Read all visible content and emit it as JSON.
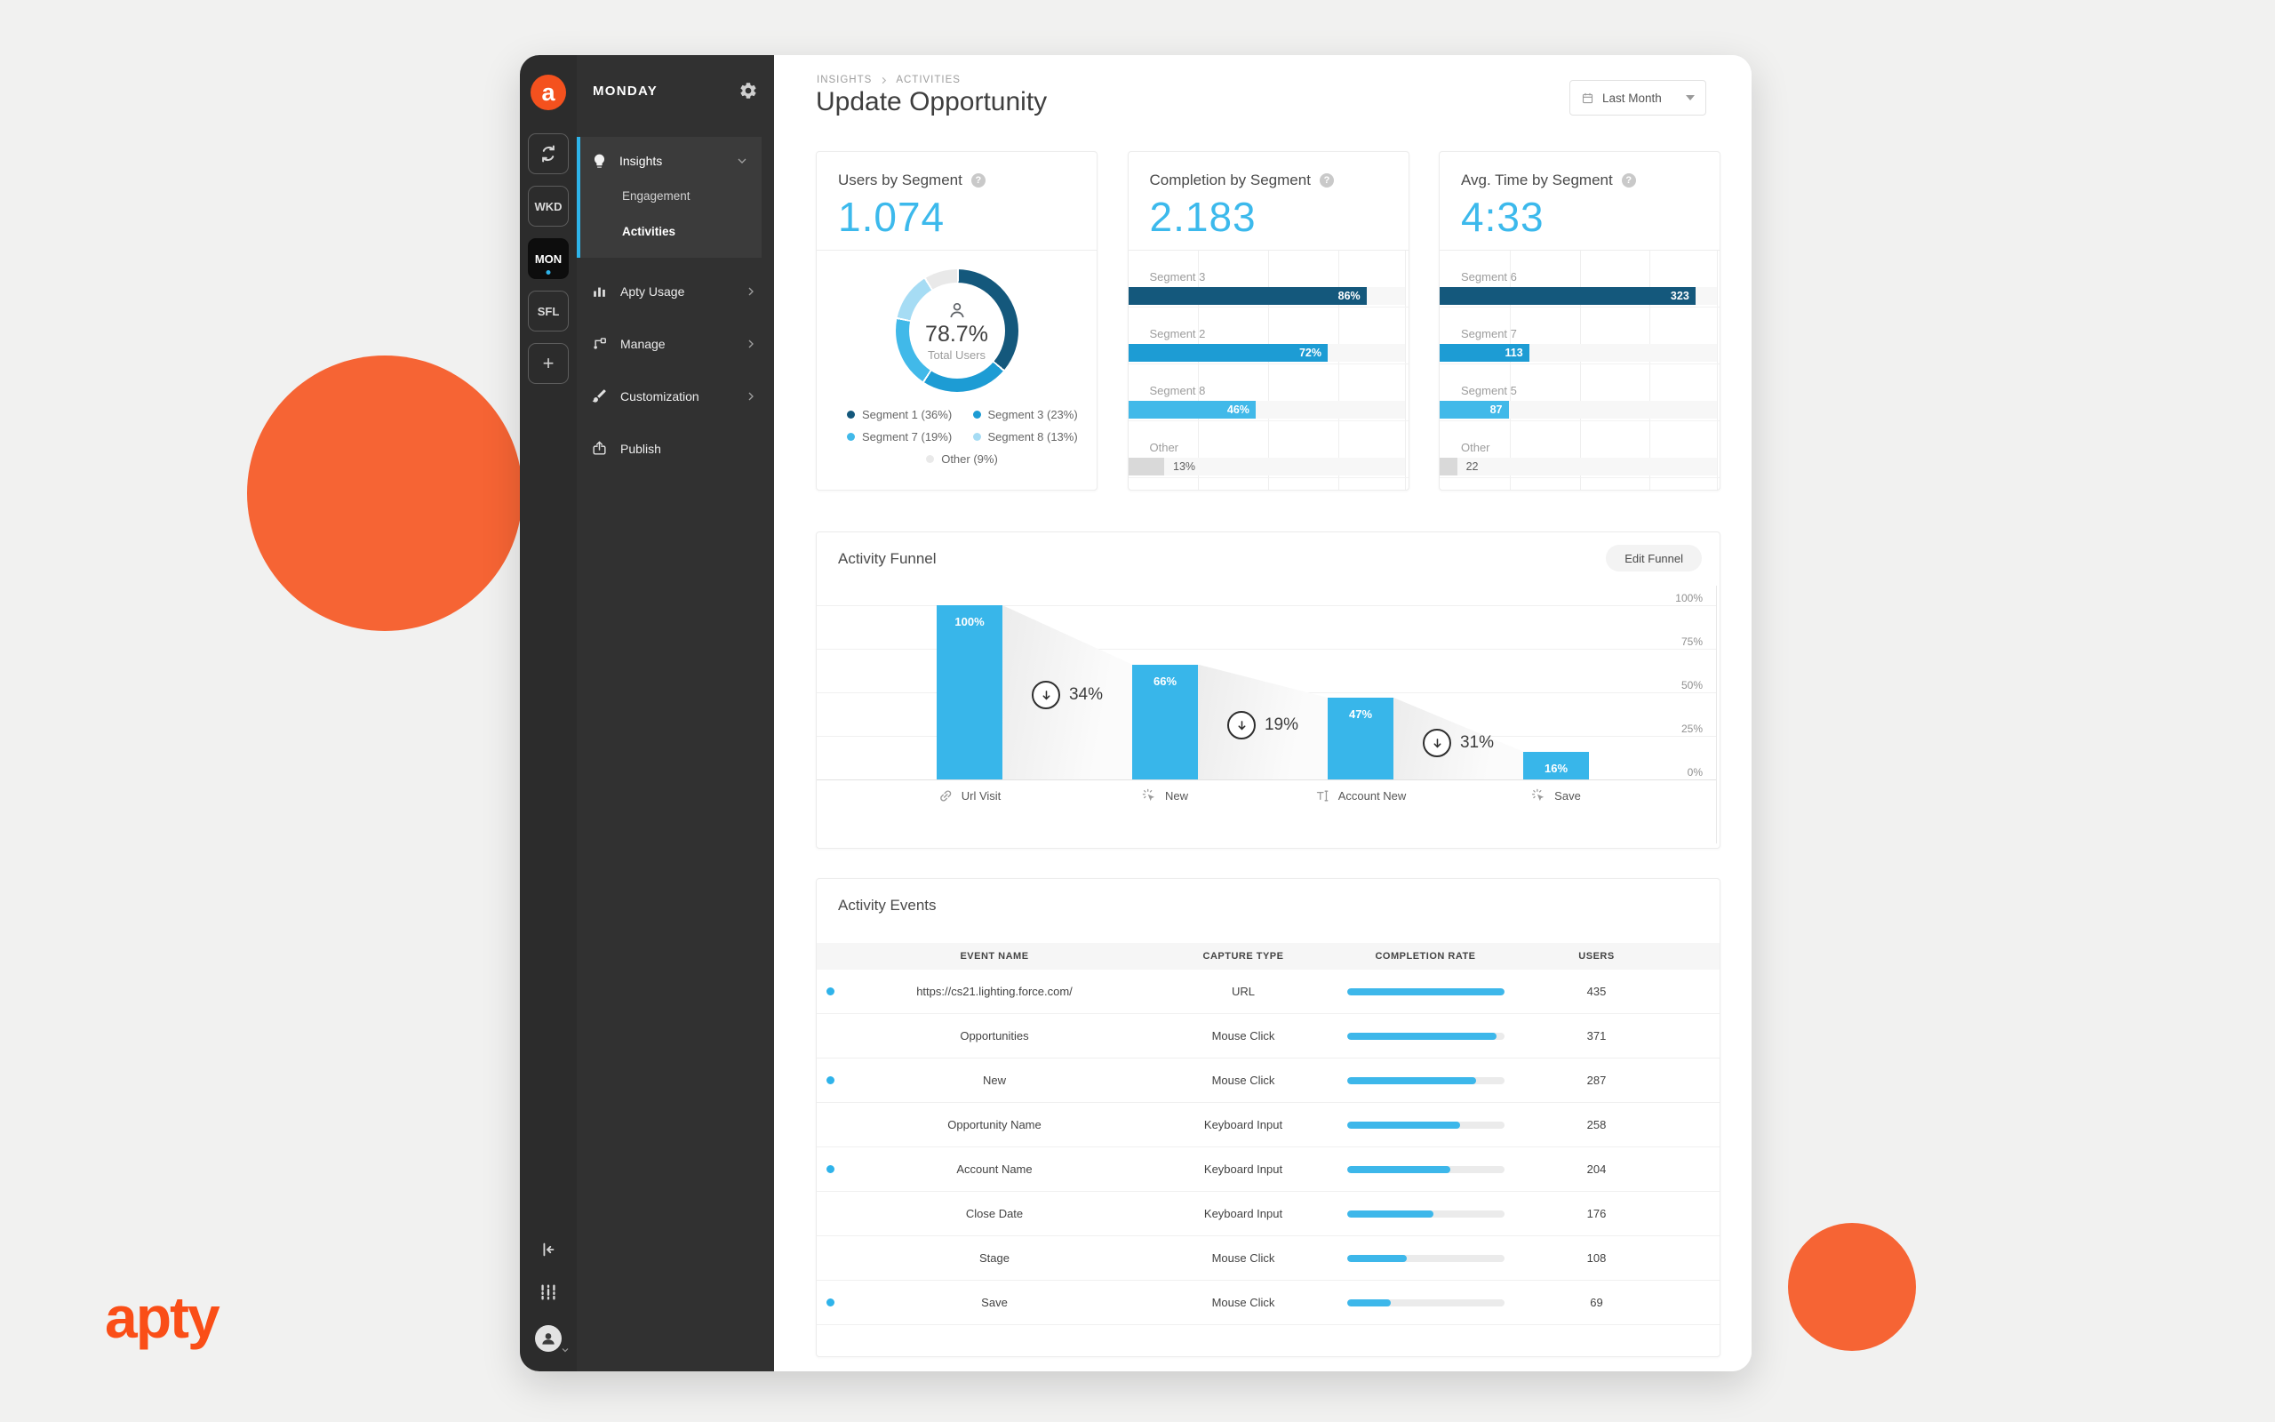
{
  "brand": {
    "logo_text": "apty",
    "badge_letter": "a"
  },
  "icons": {
    "add": "+",
    "help": "?"
  },
  "sidebar": {
    "title": "MONDAY",
    "workspaces": [
      {
        "label": "WKD",
        "active": false
      },
      {
        "label": "MON",
        "active": true
      },
      {
        "label": "SFL",
        "active": false
      }
    ],
    "menu": [
      {
        "label": "Insights",
        "expanded": true,
        "children": [
          {
            "label": "Engagement",
            "active": false
          },
          {
            "label": "Activities",
            "active": true
          }
        ]
      },
      {
        "label": "Apty Usage",
        "expanded": false
      },
      {
        "label": "Manage",
        "expanded": false
      },
      {
        "label": "Customization",
        "expanded": false
      },
      {
        "label": "Publish",
        "expanded": false
      }
    ]
  },
  "header": {
    "breadcrumb": [
      "INSIGHTS",
      "ACTIVITIES"
    ],
    "title": "Update Opportunity",
    "date_filter": "Last Month"
  },
  "actions": {
    "edit_funnel": "Edit Funnel"
  },
  "chart_data": [
    {
      "id": "users_by_segment",
      "type": "pie",
      "title": "Users by Segment",
      "headline_value": "1.074",
      "center_value": "78.7%",
      "center_label": "Total Users",
      "labels": [
        "Segment 1",
        "Segment 3",
        "Segment 7",
        "Segment 8",
        "Other"
      ],
      "values": [
        36,
        23,
        19,
        13,
        9
      ],
      "unit": "%",
      "colors": [
        "#14587c",
        "#1d9cd4",
        "#41b9e9",
        "#a6dcf4",
        "#e9e9e9"
      ],
      "legend_position": "bottom"
    },
    {
      "id": "completion_by_segment",
      "type": "bar",
      "orientation": "horizontal",
      "title": "Completion by Segment",
      "headline_value": "2.183",
      "categories": [
        "Segment 3",
        "Segment 2",
        "Segment 8",
        "Other"
      ],
      "values": [
        86,
        72,
        46,
        13
      ],
      "unit": "%",
      "xlim": [
        0,
        100
      ],
      "colors": [
        "#14587c",
        "#1d9cd4",
        "#41b9e9",
        "#d9d9d9"
      ],
      "grid": true
    },
    {
      "id": "avg_time_by_segment",
      "type": "bar",
      "orientation": "horizontal",
      "title": "Avg. Time by Segment",
      "headline_value": "4:33",
      "categories": [
        "Segment 6",
        "Segment 7",
        "Segment 5",
        "Other"
      ],
      "values": [
        323,
        113,
        87,
        22
      ],
      "unit": "",
      "xlim": [
        0,
        350
      ],
      "colors": [
        "#14587c",
        "#1d9cd4",
        "#41b9e9",
        "#d9d9d9"
      ],
      "grid": true
    },
    {
      "id": "activity_funnel",
      "type": "funnel",
      "title": "Activity Funnel",
      "categories": [
        "Url Visit",
        "New",
        "Account New",
        "Save"
      ],
      "values": [
        100,
        66,
        47,
        16
      ],
      "unit": "%",
      "drops": [
        34,
        19,
        31
      ],
      "ylim": [
        0,
        100
      ],
      "y_ticks": [
        "100%",
        "75%",
        "50%",
        "25%",
        "0%"
      ],
      "icons": [
        "link-icon",
        "click-icon",
        "text-input-icon",
        "click-icon"
      ]
    }
  ],
  "events": {
    "title": "Activity Events",
    "columns": [
      "EVENT NAME",
      "CAPTURE TYPE",
      "COMPLETION RATE",
      "USERS"
    ],
    "rows": [
      {
        "dot": true,
        "event": "https://cs21.lighting.force.com/",
        "capture": "URL",
        "pct": 100,
        "users": "435"
      },
      {
        "dot": false,
        "event": "Opportunities",
        "capture": "Mouse Click",
        "pct": 95,
        "users": "371"
      },
      {
        "dot": true,
        "event": "New",
        "capture": "Mouse Click",
        "pct": 82,
        "users": "287"
      },
      {
        "dot": false,
        "event": "Opportunity Name",
        "capture": "Keyboard Input",
        "pct": 72,
        "users": "258"
      },
      {
        "dot": true,
        "event": "Account Name",
        "capture": "Keyboard Input",
        "pct": 66,
        "users": "204"
      },
      {
        "dot": false,
        "event": "Close Date",
        "capture": "Keyboard Input",
        "pct": 55,
        "users": "176"
      },
      {
        "dot": false,
        "event": "Stage",
        "capture": "Mouse Click",
        "pct": 38,
        "users": "108"
      },
      {
        "dot": true,
        "event": "Save",
        "capture": "Mouse Click",
        "pct": 28,
        "users": "69"
      }
    ]
  },
  "colors": {
    "accent": "#2eb4ea",
    "headline": "#3cb9ec",
    "orange": "#f4511e",
    "bar_dark": "#14587c",
    "bar_medium": "#1d9cd4",
    "bar_light": "#41b9e9",
    "bar_pale": "#a6dcf4",
    "bar_gray": "#d9d9d9",
    "funnel_bar": "#38b6ea",
    "progress": "#3db7ea"
  }
}
